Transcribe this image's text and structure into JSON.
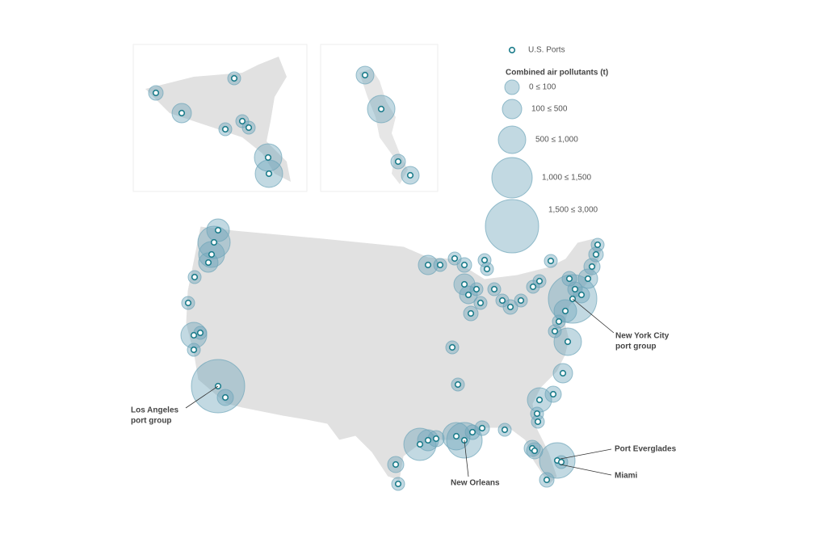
{
  "legend": {
    "ports": "U.S. Ports",
    "title": "Combined air pollutants (t)",
    "classes": [
      "0 ≤ 100",
      "100 ≤ 500",
      "500 ≤ 1,000",
      "1,000 ≤ 1,500",
      "1,500 ≤ 3,000"
    ]
  },
  "annotations": {
    "new_york": [
      "New York City",
      "port group"
    ],
    "los_angeles": [
      "Los Angeles",
      "port group"
    ],
    "new_orleans": "New Orleans",
    "port_everglades": "Port Everglades",
    "miami": "Miami"
  }
}
